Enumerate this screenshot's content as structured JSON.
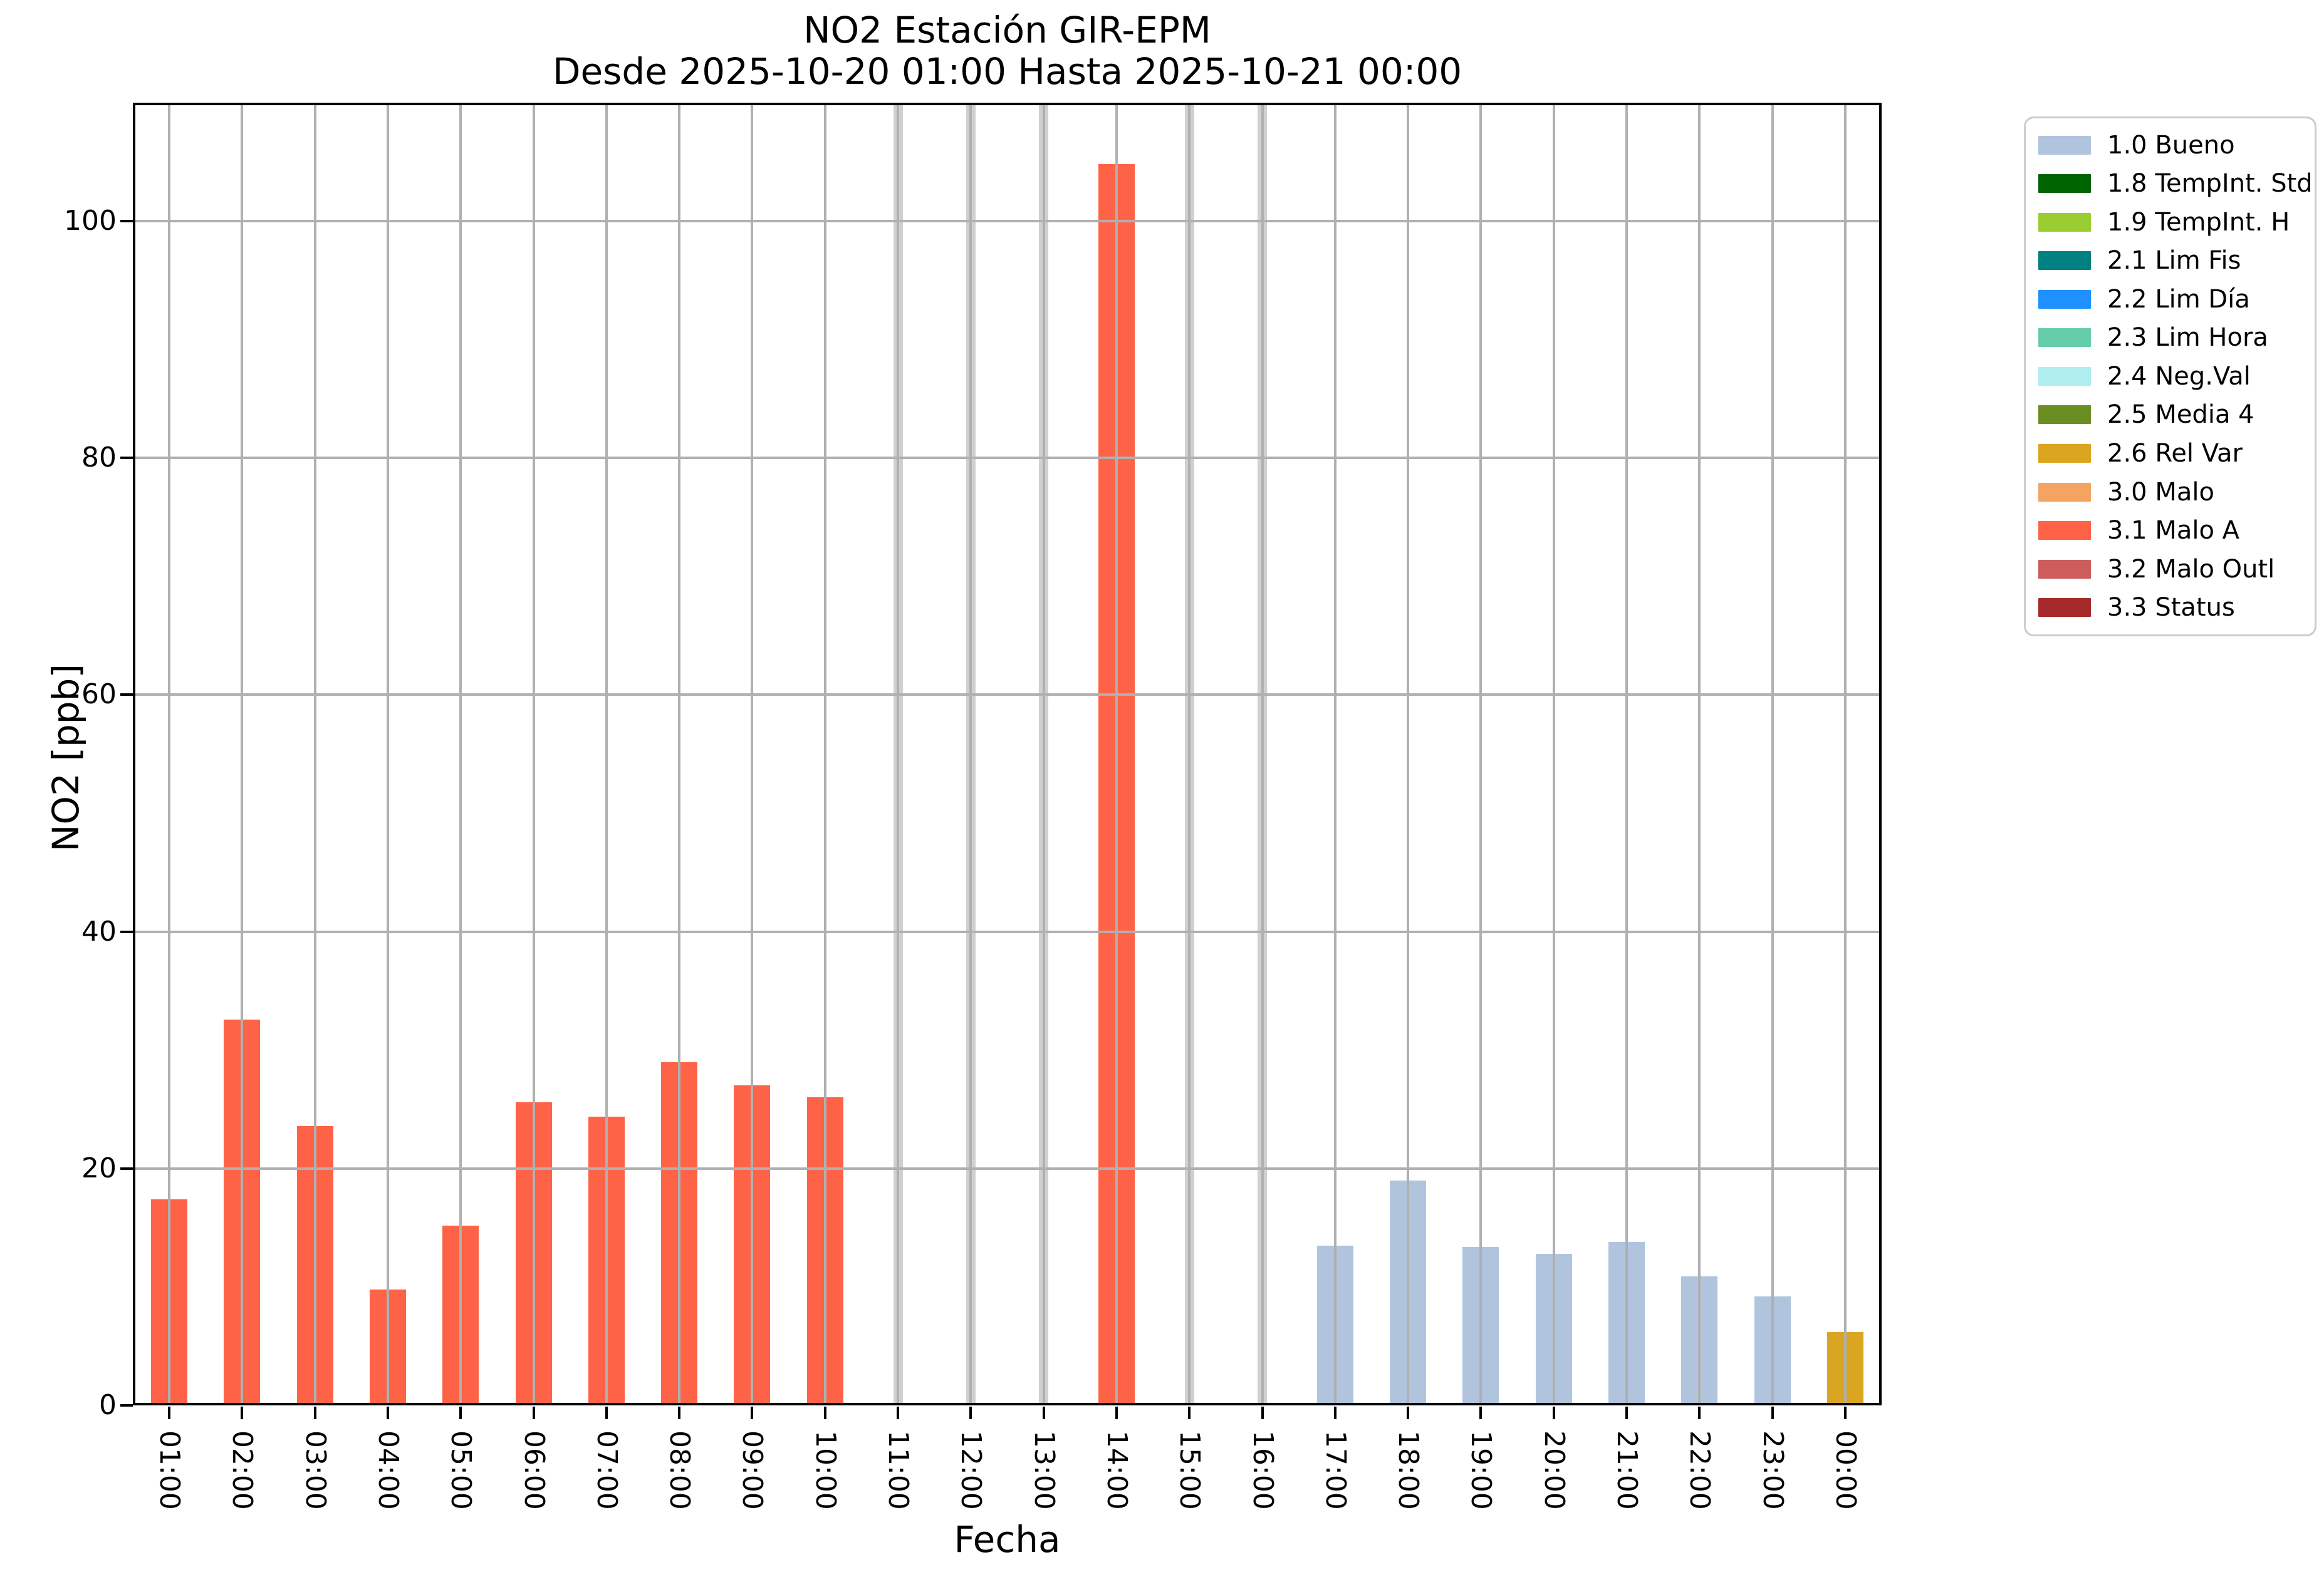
{
  "title": {
    "line1": "NO2 Estación GIR-EPM",
    "line2": "Desde 2025-10-20 01:00 Hasta 2025-10-21 00:00"
  },
  "chart_data": {
    "type": "bar",
    "title": "NO2 Estación GIR-EPM\nDesde 2025-10-20 01:00 Hasta 2025-10-21 00:00",
    "xlabel": "Fecha",
    "ylabel": "NO2 [ppb]",
    "ylim": [
      0,
      110
    ],
    "yticks": [
      0,
      20,
      40,
      60,
      80,
      100
    ],
    "grid": true,
    "grid_color": "#b0b0b0",
    "categories": [
      "01:00",
      "02:00",
      "03:00",
      "04:00",
      "05:00",
      "06:00",
      "07:00",
      "08:00",
      "09:00",
      "10:00",
      "11:00",
      "12:00",
      "13:00",
      "14:00",
      "15:00",
      "16:00",
      "17:00",
      "18:00",
      "19:00",
      "20:00",
      "21:00",
      "22:00",
      "23:00",
      "00:00"
    ],
    "values": [
      17.4,
      32.6,
      23.6,
      9.8,
      15.2,
      25.6,
      24.4,
      29.0,
      27.0,
      26.0,
      null,
      null,
      null,
      104.8,
      null,
      null,
      13.5,
      19.0,
      13.4,
      12.8,
      13.8,
      10.9,
      9.2,
      6.2
    ],
    "flags": [
      "3.1",
      "3.1",
      "3.1",
      "3.1",
      "3.1",
      "3.1",
      "3.1",
      "3.1",
      "3.1",
      "3.1",
      "no_data",
      "no_data",
      "no_data",
      "3.1",
      "no_data",
      "no_data",
      "1.0",
      "1.0",
      "1.0",
      "1.0",
      "1.0",
      "1.0",
      "1.0",
      "2.6"
    ],
    "no_data_note": "hours 11:00, 12:00, 13:00, 15:00, 16:00 show full-height narrow light-gray bars (no valid value)",
    "colors": {
      "1.0": "#b0c4de",
      "1.8": "#006400",
      "1.9": "#9acd32",
      "2.1": "#008080",
      "2.2": "#1e90ff",
      "2.3": "#66cdaa",
      "2.4": "#afeeee",
      "2.5": "#6b8e23",
      "2.6": "#daa520",
      "3.0": "#f4a460",
      "3.1": "#ff6347",
      "3.2": "#cd5c5c",
      "3.3": "#a52a2a",
      "no_data": "#d0d0d0"
    },
    "legend": {
      "position": "outside upper right",
      "items": [
        {
          "key": "1.0",
          "label": "1.0 Bueno",
          "color": "#b0c4de"
        },
        {
          "key": "1.8",
          "label": "1.8 TempInt. Std",
          "color": "#006400"
        },
        {
          "key": "1.9",
          "label": "1.9 TempInt. H",
          "color": "#9acd32"
        },
        {
          "key": "2.1",
          "label": "2.1 Lim Fis",
          "color": "#008080"
        },
        {
          "key": "2.2",
          "label": "2.2 Lim Día",
          "color": "#1e90ff"
        },
        {
          "key": "2.3",
          "label": "2.3 Lim Hora",
          "color": "#66cdaa"
        },
        {
          "key": "2.4",
          "label": "2.4 Neg.Val",
          "color": "#afeeee"
        },
        {
          "key": "2.5",
          "label": "2.5 Media 4",
          "color": "#6b8e23"
        },
        {
          "key": "2.6",
          "label": "2.6 Rel Var",
          "color": "#daa520"
        },
        {
          "key": "3.0",
          "label": "3.0 Malo",
          "color": "#f4a460"
        },
        {
          "key": "3.1",
          "label": "3.1 Malo A",
          "color": "#ff6347"
        },
        {
          "key": "3.2",
          "label": "3.2 Malo Outl",
          "color": "#cd5c5c"
        },
        {
          "key": "3.3",
          "label": "3.3 Status",
          "color": "#a52a2a"
        }
      ]
    }
  }
}
